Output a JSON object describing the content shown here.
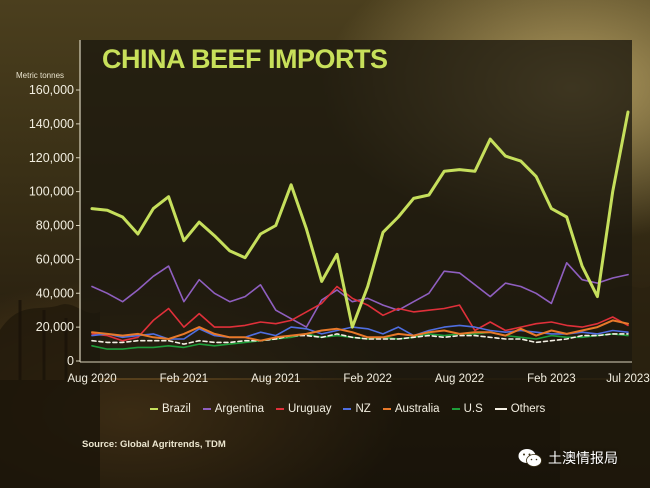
{
  "chart_data": {
    "type": "line",
    "title": "CHINA BEEF IMPORTS",
    "ylabel": "Metric tonnes",
    "ylim": [
      0,
      160000
    ],
    "yticks": [
      0,
      20000,
      40000,
      60000,
      80000,
      100000,
      120000,
      140000,
      160000
    ],
    "ytick_labels": [
      "0",
      "20,000",
      "40,000",
      "60,000",
      "80,000",
      "100,000",
      "120,000",
      "140,000",
      "160,000"
    ],
    "x": [
      "2020-08",
      "2020-09",
      "2020-10",
      "2020-11",
      "2020-12",
      "2021-01",
      "2021-02",
      "2021-03",
      "2021-04",
      "2021-05",
      "2021-06",
      "2021-07",
      "2021-08",
      "2021-09",
      "2021-10",
      "2021-11",
      "2021-12",
      "2022-01",
      "2022-02",
      "2022-03",
      "2022-04",
      "2022-05",
      "2022-06",
      "2022-07",
      "2022-08",
      "2022-09",
      "2022-10",
      "2022-11",
      "2022-12",
      "2023-01",
      "2023-02",
      "2023-03",
      "2023-04",
      "2023-05",
      "2023-06",
      "2023-07"
    ],
    "xticks": [
      {
        "at": "2020-08",
        "label": "Aug 2020"
      },
      {
        "at": "2021-02",
        "label": "Feb 2021"
      },
      {
        "at": "2021-08",
        "label": "Aug 2021"
      },
      {
        "at": "2022-02",
        "label": "Feb 2022"
      },
      {
        "at": "2022-08",
        "label": "Aug 2022"
      },
      {
        "at": "2023-02",
        "label": "Feb 2023"
      },
      {
        "at": "2023-07",
        "label": "Jul 2023"
      }
    ],
    "grid": false,
    "legend_position": "bottom",
    "series": [
      {
        "name": "Brazil",
        "color": "#c6df5c",
        "width": 3,
        "values": [
          90000,
          89000,
          85000,
          75000,
          90000,
          97000,
          71000,
          82000,
          74000,
          65000,
          61000,
          75000,
          80000,
          104000,
          78000,
          47000,
          63000,
          20000,
          44000,
          76000,
          85000,
          96000,
          98000,
          112000,
          113000,
          112000,
          131000,
          121000,
          118000,
          109000,
          90000,
          85000,
          56000,
          38000,
          100000,
          147000
        ]
      },
      {
        "name": "Argentina",
        "color": "#8f5fc0",
        "width": 1.6,
        "values": [
          44000,
          40000,
          35000,
          42000,
          50000,
          56000,
          35000,
          48000,
          40000,
          35000,
          38000,
          45000,
          30000,
          25000,
          20000,
          36000,
          42000,
          35000,
          37000,
          33000,
          30000,
          35000,
          40000,
          53000,
          52000,
          45000,
          38000,
          46000,
          44000,
          40000,
          34000,
          58000,
          48000,
          46000,
          49000,
          51000
        ]
      },
      {
        "name": "Uruguay",
        "color": "#e0303a",
        "width": 1.6,
        "values": [
          16000,
          15000,
          12000,
          14000,
          24000,
          31000,
          20000,
          28000,
          20000,
          20000,
          21000,
          23000,
          22000,
          24000,
          29000,
          34000,
          44000,
          37000,
          33000,
          27000,
          31000,
          29000,
          30000,
          31000,
          33000,
          18000,
          23000,
          18000,
          20000,
          22000,
          23000,
          21000,
          20000,
          22000,
          26000,
          21000
        ]
      },
      {
        "name": "NZ",
        "color": "#4f6ee0",
        "width": 1.6,
        "values": [
          15000,
          16000,
          14000,
          15000,
          16000,
          13000,
          13000,
          19000,
          15000,
          14000,
          14000,
          17000,
          15000,
          20000,
          19000,
          16000,
          18000,
          20000,
          19000,
          16000,
          20000,
          15000,
          18000,
          20000,
          21000,
          20000,
          18000,
          17000,
          18000,
          17000,
          16000,
          16000,
          17000,
          16000,
          18000,
          17000
        ]
      },
      {
        "name": "Australia",
        "color": "#e8792a",
        "width": 2,
        "values": [
          17000,
          16000,
          15000,
          16000,
          14000,
          13000,
          16000,
          20000,
          16000,
          14000,
          14000,
          12000,
          14000,
          15000,
          16000,
          18000,
          19000,
          17000,
          14000,
          14000,
          16000,
          15000,
          17000,
          18000,
          16000,
          17000,
          17000,
          15000,
          19000,
          15000,
          18000,
          16000,
          18000,
          20000,
          24000,
          22000
        ]
      },
      {
        "name": "U.S",
        "color": "#1e9e3a",
        "width": 1.6,
        "values": [
          9000,
          7000,
          7000,
          8000,
          8000,
          9000,
          8000,
          10000,
          9000,
          10000,
          11000,
          12000,
          13000,
          14000,
          16000,
          14000,
          15000,
          14000,
          13000,
          14000,
          13000,
          14000,
          16000,
          15000,
          16000,
          16000,
          17000,
          15000,
          14000,
          13000,
          15000,
          14000,
          14000,
          15000,
          16000,
          15000
        ]
      },
      {
        "name": "Others",
        "color": "#f4f0e4",
        "width": 1.6,
        "dashed": true,
        "values": [
          12000,
          11000,
          11000,
          12000,
          12000,
          12000,
          10000,
          12000,
          11000,
          11000,
          12000,
          12000,
          13000,
          15000,
          15000,
          14000,
          16000,
          14000,
          13000,
          13000,
          13000,
          14000,
          15000,
          14000,
          15000,
          15000,
          14000,
          13000,
          13000,
          11000,
          12000,
          13000,
          15000,
          15000,
          16000,
          16000
        ]
      }
    ],
    "source": "Source: Global Agritrends, TDM"
  },
  "watermark": {
    "text": "土澳情报局",
    "icon": "wechat-icon"
  }
}
